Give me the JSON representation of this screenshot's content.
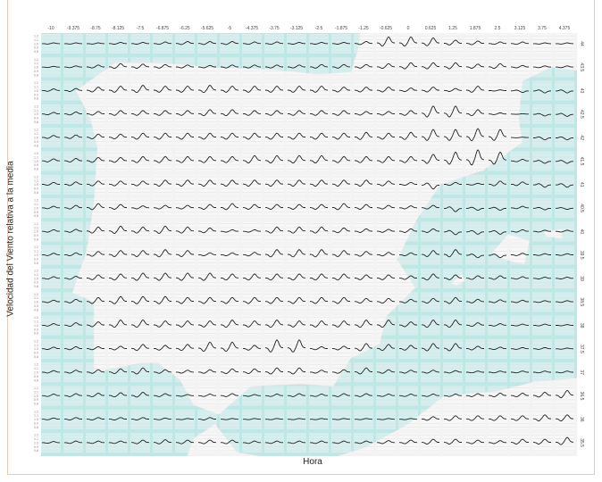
{
  "chart_data": {
    "type": "line",
    "layout": "small-multiples grid over map",
    "xlabel": "Hora",
    "ylabel": "Velocidad del Viento relativa a la media",
    "panel_ylim": [
      0.75,
      1.25
    ],
    "panel_yticks": [
      "1.2",
      "1.1",
      "1.0",
      "0.9",
      "0.8"
    ],
    "column_labels": [
      "-10",
      "-9.375",
      "-8.75",
      "-8.125",
      "-7.5",
      "-6.875",
      "-6.25",
      "-5.625",
      "-5",
      "-4.375",
      "-3.75",
      "-3.125",
      "-2.5",
      "-1.875",
      "-1.25",
      "-0.625",
      "0",
      "0.625",
      "1.25",
      "1.875",
      "2.5",
      "3.125",
      "3.75",
      "4.375"
    ],
    "row_labels": [
      "44",
      "43.5",
      "43",
      "42.5",
      "42",
      "41.5",
      "41",
      "40.5",
      "40",
      "39.5",
      "39",
      "38.5",
      "38",
      "37.5",
      "37",
      "36.5",
      "36",
      "35.5"
    ],
    "colors": {
      "line": "#222222",
      "sea": "#bfe7e6",
      "land": "#f3f3f3",
      "grid": "#dcdcdc",
      "frame": "#e9c9b4"
    },
    "daily_amplitude": [
      [
        0.02,
        0.02,
        0.02,
        0.03,
        0.03,
        0.04,
        0.05,
        0.05,
        0.05,
        0.04,
        0.04,
        0.03,
        0.03,
        0.03,
        0.05,
        0.15,
        0.15,
        0.13,
        0.08,
        0.06,
        0.04,
        0.04,
        0.02,
        0.02
      ],
      [
        0.02,
        0.03,
        0.05,
        0.08,
        0.07,
        0.06,
        0.05,
        0.04,
        0.05,
        0.05,
        0.05,
        0.05,
        0.06,
        0.06,
        0.06,
        0.08,
        0.1,
        0.1,
        0.1,
        0.07,
        0.08,
        0.04,
        0.03,
        0.03
      ],
      [
        0.04,
        0.05,
        0.08,
        0.1,
        0.12,
        0.1,
        0.1,
        0.12,
        0.1,
        0.1,
        0.1,
        0.1,
        0.1,
        0.08,
        0.08,
        0.08,
        0.06,
        0.08,
        0.05,
        0.1,
        0.02,
        -0.04,
        -0.05,
        -0.05
      ],
      [
        0.04,
        0.05,
        0.06,
        0.08,
        0.08,
        0.08,
        0.08,
        0.1,
        0.1,
        0.08,
        0.08,
        0.08,
        0.08,
        0.08,
        0.06,
        0.06,
        0.08,
        0.18,
        0.18,
        0.1,
        0.03,
        0.01,
        -0.04,
        -0.05
      ],
      [
        0.05,
        0.06,
        0.08,
        0.08,
        0.1,
        0.1,
        0.1,
        0.1,
        0.1,
        0.1,
        0.1,
        0.1,
        0.1,
        0.1,
        0.12,
        0.1,
        0.12,
        0.18,
        0.18,
        0.2,
        0.18,
        0.01,
        -0.05,
        -0.05
      ],
      [
        0.05,
        0.06,
        0.08,
        0.08,
        0.1,
        0.1,
        0.1,
        0.1,
        0.1,
        0.12,
        0.12,
        0.12,
        0.12,
        0.1,
        0.1,
        0.1,
        0.1,
        0.15,
        0.2,
        0.25,
        0.2,
        0.04,
        -0.05,
        -0.05
      ],
      [
        0.05,
        0.06,
        0.08,
        0.08,
        0.08,
        0.1,
        0.1,
        0.1,
        0.1,
        0.1,
        0.1,
        0.1,
        0.1,
        0.1,
        0.1,
        0.08,
        0.05,
        -0.1,
        0.05,
        0.03,
        0.08,
        0.06,
        -0.06,
        -0.06
      ],
      [
        0.04,
        0.06,
        0.1,
        0.08,
        0.05,
        0.06,
        0.06,
        0.08,
        0.1,
        0.08,
        0.08,
        0.08,
        0.08,
        0.1,
        0.08,
        0.06,
        0.05,
        0.06,
        -0.08,
        -0.05,
        -0.05,
        0.04,
        -0.04,
        -0.03
      ],
      [
        0.04,
        0.05,
        0.1,
        0.12,
        0.1,
        0.12,
        0.1,
        0.08,
        0.04,
        0.04,
        0.1,
        0.1,
        0.1,
        0.08,
        0.06,
        0.05,
        0.06,
        0.06,
        -0.07,
        -0.06,
        -0.06,
        0.04,
        0.03,
        0.03
      ],
      [
        0.04,
        0.05,
        0.08,
        0.1,
        0.1,
        0.12,
        0.1,
        0.05,
        0.05,
        0.06,
        0.12,
        0.12,
        0.12,
        0.1,
        0.08,
        0.06,
        0.05,
        0.1,
        0.12,
        -0.06,
        -0.06,
        0.04,
        0.03,
        0.03
      ],
      [
        0.04,
        0.05,
        0.08,
        0.1,
        0.12,
        0.12,
        0.12,
        0.12,
        0.1,
        0.1,
        0.1,
        0.1,
        0.1,
        0.1,
        0.08,
        0.08,
        0.06,
        0.1,
        0.08,
        0.06,
        0.06,
        0.04,
        0.03,
        0.03
      ],
      [
        0.04,
        0.06,
        0.1,
        0.12,
        0.12,
        0.12,
        0.1,
        0.1,
        0.1,
        0.1,
        0.1,
        0.1,
        0.1,
        0.1,
        0.08,
        0.08,
        0.06,
        0.08,
        0.1,
        0.06,
        0.05,
        0.04,
        0.03,
        0.03
      ],
      [
        0.04,
        0.06,
        0.08,
        0.12,
        0.12,
        0.1,
        0.1,
        0.1,
        0.12,
        0.1,
        0.12,
        0.1,
        0.1,
        0.1,
        0.12,
        0.12,
        0.08,
        0.12,
        0.12,
        0.06,
        0.04,
        0.03,
        0.03,
        0.02
      ],
      [
        0.04,
        0.05,
        0.05,
        0.06,
        0.1,
        0.08,
        0.1,
        0.15,
        0.15,
        0.08,
        0.2,
        0.2,
        0.05,
        0.06,
        0.12,
        0.1,
        0.08,
        0.12,
        0.12,
        0.06,
        0.04,
        0.03,
        0.03,
        0.02
      ],
      [
        0.04,
        0.05,
        0.06,
        0.08,
        0.1,
        0.06,
        0.05,
        0.06,
        0.08,
        0.08,
        0.1,
        0.1,
        0.05,
        0.06,
        0.1,
        0.06,
        0.05,
        0.05,
        0.04,
        0.03,
        0.03,
        0.03,
        0.03,
        0.03
      ],
      [
        0.04,
        0.05,
        0.06,
        0.07,
        0.08,
        0.05,
        0.03,
        0.04,
        0.05,
        0.03,
        0.04,
        0.05,
        0.04,
        0.05,
        0.05,
        0.04,
        0.04,
        0.04,
        0.04,
        0.05,
        0.06,
        0.06,
        0.08,
        0.12
      ],
      [
        0.03,
        0.04,
        0.04,
        0.04,
        0.04,
        0.03,
        0.02,
        0.04,
        0.02,
        0.02,
        0.02,
        0.02,
        0.02,
        0.02,
        0.02,
        0.02,
        0.02,
        0.06,
        0.08,
        0.08,
        0.08,
        0.08,
        0.1,
        0.1
      ],
      [
        0.03,
        0.04,
        0.04,
        0.04,
        0.06,
        0.07,
        0.06,
        0.06,
        0.06,
        0.04,
        0.04,
        0.04,
        0.04,
        0.04,
        0.04,
        0.05,
        0.06,
        0.08,
        0.08,
        0.06,
        0.05,
        0.08,
        0.08,
        0.12
      ]
    ]
  }
}
